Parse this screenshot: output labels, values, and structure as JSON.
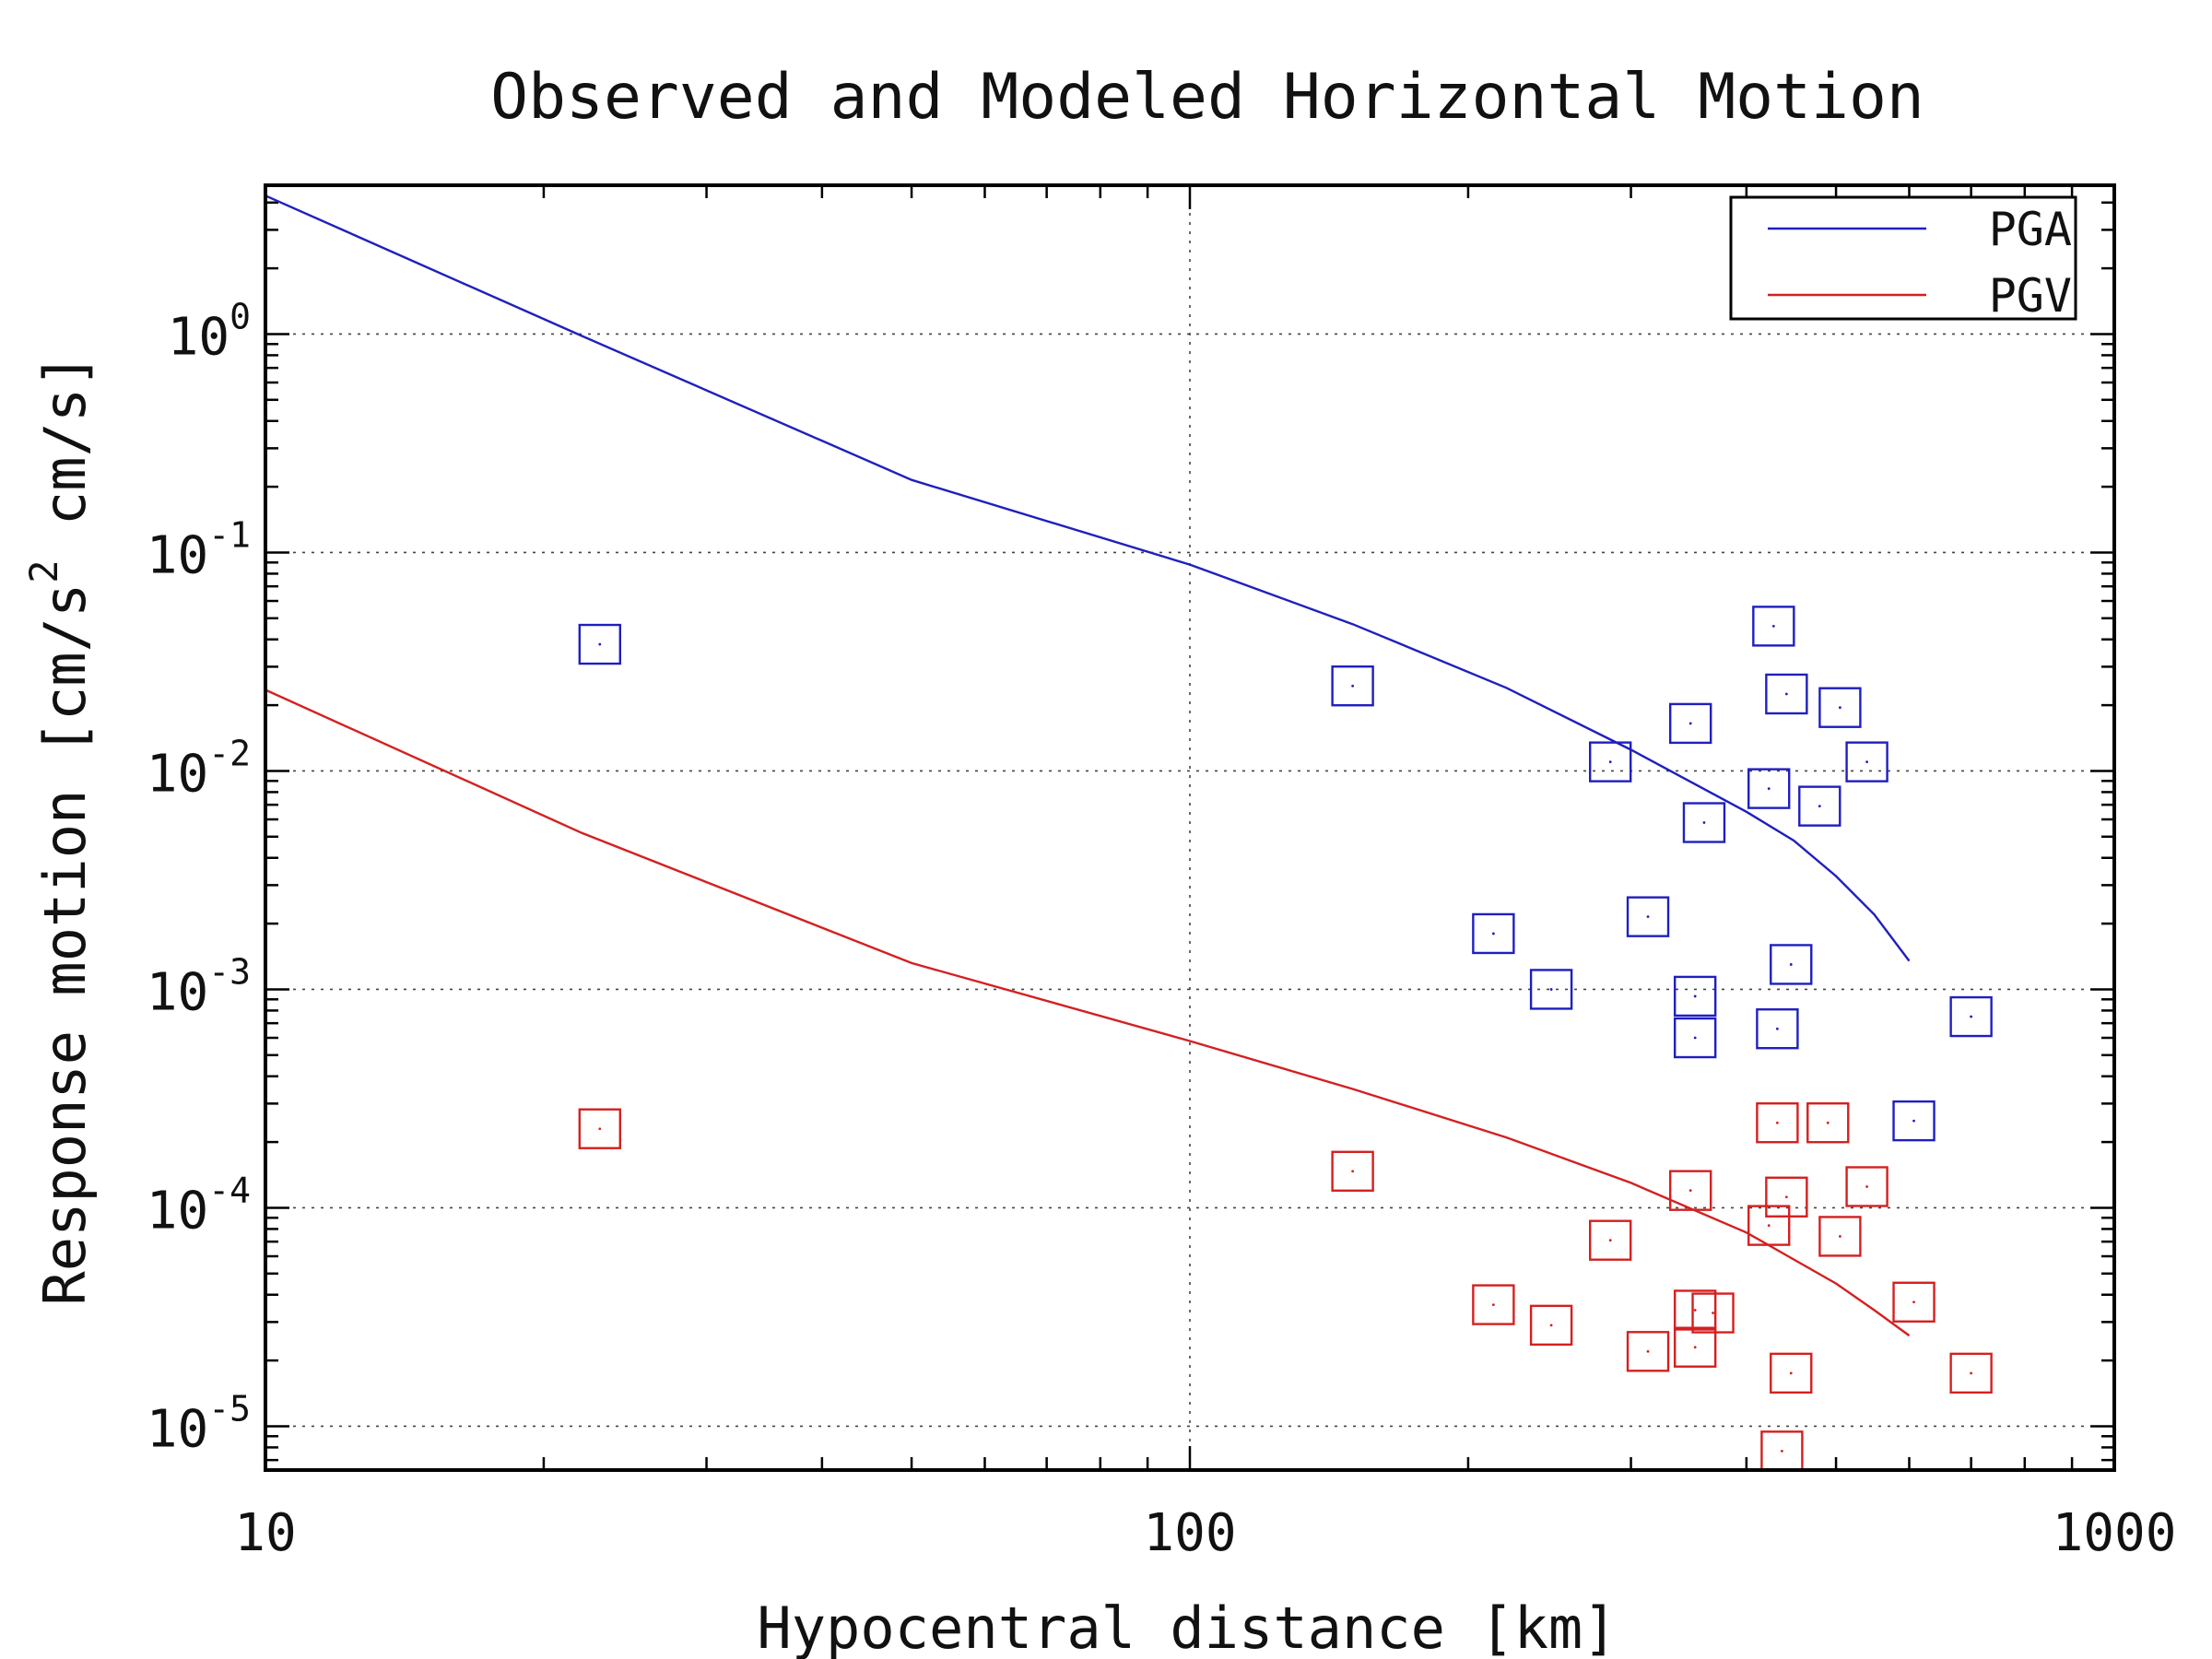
{
  "chart_data": {
    "type": "scatter",
    "title": "Observed and Modeled Horizontal Motion",
    "xlabel": "Hypocentral distance [km]",
    "ylabel": "Response motion [cm/s^2  cm/s]",
    "x_scale": "log",
    "y_scale": "log",
    "xlim": [
      10,
      1000
    ],
    "ylim": [
      6.3e-06,
      4.8
    ],
    "x_ticks": [
      {
        "value": 10,
        "label": "10"
      },
      {
        "value": 100,
        "label": "100"
      },
      {
        "value": 1000,
        "label": "1000"
      }
    ],
    "y_ticks": [
      {
        "value": 1,
        "base": "10",
        "exp": "0"
      },
      {
        "value": 0.1,
        "base": "10",
        "exp": "-1"
      },
      {
        "value": 0.01,
        "base": "10",
        "exp": "-2"
      },
      {
        "value": 0.001,
        "base": "10",
        "exp": "-3"
      },
      {
        "value": 0.0001,
        "base": "10",
        "exp": "-4"
      },
      {
        "value": 1e-05,
        "base": "10",
        "exp": "-5"
      }
    ],
    "grid": true,
    "legend": {
      "position": "top-right",
      "entries": [
        "PGA",
        "PGV"
      ]
    },
    "series": [
      {
        "name": "PGA",
        "color": "#1f1fbf",
        "line": [
          [
            10,
            4.3
          ],
          [
            22,
            0.98
          ],
          [
            50,
            0.215
          ],
          [
            100,
            0.088
          ],
          [
            150,
            0.047
          ],
          [
            220,
            0.024
          ],
          [
            300,
            0.0125
          ],
          [
            400,
            0.0065
          ],
          [
            450,
            0.0048
          ],
          [
            500,
            0.0033
          ],
          [
            550,
            0.0022
          ],
          [
            600,
            0.00135
          ]
        ],
        "observed": [
          [
            23,
            0.038
          ],
          [
            150,
            0.0245
          ],
          [
            285,
            0.011
          ],
          [
            348,
            0.0165
          ],
          [
            360,
            0.0058
          ],
          [
            423,
            0.0083
          ],
          [
            428,
            0.046
          ],
          [
            442,
            0.0225
          ],
          [
            480,
            0.0069
          ],
          [
            505,
            0.0195
          ],
          [
            540,
            0.011
          ],
          [
            213,
            0.0018
          ],
          [
            246,
            0.001
          ],
          [
            313,
            0.00215
          ],
          [
            352,
            0.00093
          ],
          [
            352,
            0.0006
          ],
          [
            432,
            0.00066
          ],
          [
            447,
            0.0013
          ],
          [
            607,
            0.00025
          ],
          [
            700,
            0.00075
          ]
        ]
      },
      {
        "name": "PGV",
        "color": "#d42020",
        "line": [
          [
            10,
            0.0235
          ],
          [
            22,
            0.0052
          ],
          [
            50,
            0.00132
          ],
          [
            100,
            0.00058
          ],
          [
            150,
            0.00035
          ],
          [
            220,
            0.00021
          ],
          [
            300,
            0.00013
          ],
          [
            400,
            7.7e-05
          ],
          [
            450,
            5.8e-05
          ],
          [
            500,
            4.5e-05
          ],
          [
            550,
            3.4e-05
          ],
          [
            600,
            2.6e-05
          ]
        ],
        "observed": [
          [
            23,
            0.00023
          ],
          [
            150,
            0.000147
          ],
          [
            285,
            7.1e-05
          ],
          [
            348,
            0.00012
          ],
          [
            423,
            8.3e-05
          ],
          [
            432,
            0.000245
          ],
          [
            442,
            0.000112
          ],
          [
            490,
            0.000245
          ],
          [
            505,
            7.4e-05
          ],
          [
            540,
            0.000125
          ],
          [
            213,
            3.6e-05
          ],
          [
            246,
            2.9e-05
          ],
          [
            313,
            2.2e-05
          ],
          [
            352,
            3.4e-05
          ],
          [
            352,
            2.3e-05
          ],
          [
            368,
            3.3e-05
          ],
          [
            447,
            1.75e-05
          ],
          [
            437,
            7.7e-06
          ],
          [
            607,
            3.7e-05
          ],
          [
            700,
            1.75e-05
          ]
        ]
      }
    ]
  }
}
